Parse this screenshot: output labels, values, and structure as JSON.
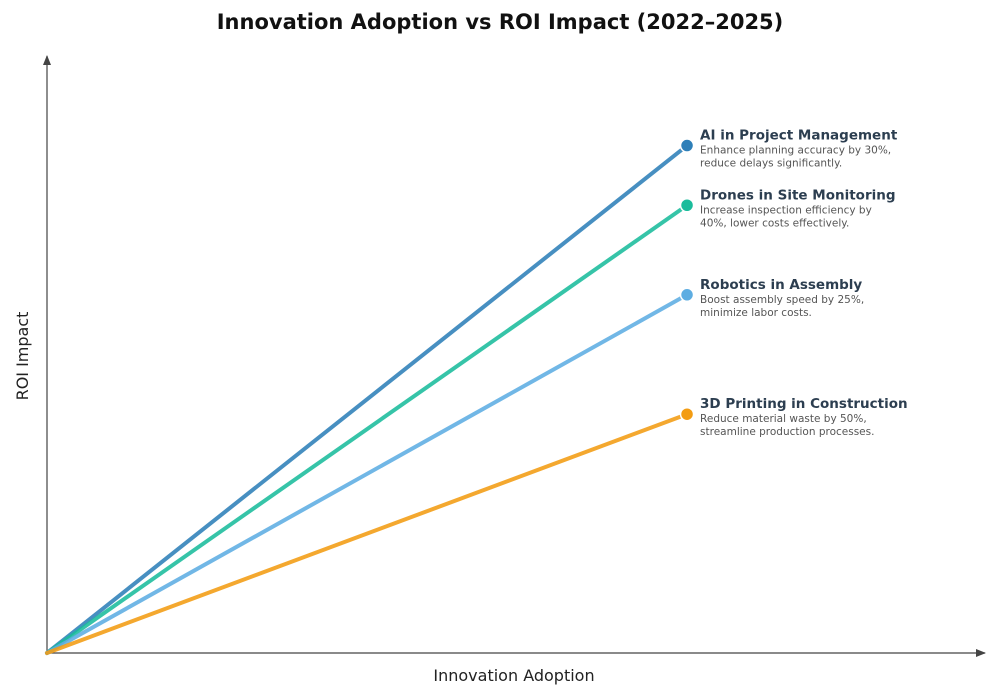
{
  "chart_data": {
    "type": "line",
    "title": "Innovation Adoption vs ROI Impact (2022–2025)",
    "xlabel": "Innovation Adoption",
    "ylabel": "ROI Impact",
    "xlim": [
      0,
      1
    ],
    "ylim": [
      0,
      1
    ],
    "grid": false,
    "legend": "inline-right",
    "series": [
      {
        "name": "AI in Project Management",
        "description_lines": [
          "Enhance planning accuracy by 30%,",
          "reduce delays significantly."
        ],
        "color": "#2e7fb8",
        "points": [
          [
            0,
            0
          ],
          [
            0.686,
            0.85
          ]
        ]
      },
      {
        "name": "Drones in Site Monitoring",
        "description_lines": [
          "Increase inspection efficiency by",
          "40%, lower costs effectively."
        ],
        "color": "#1abc9c",
        "points": [
          [
            0,
            0
          ],
          [
            0.686,
            0.75
          ]
        ]
      },
      {
        "name": "Robotics in Assembly",
        "description_lines": [
          "Boost assembly speed by 25%,",
          "minimize labor costs."
        ],
        "color": "#5dade2",
        "points": [
          [
            0,
            0
          ],
          [
            0.686,
            0.6
          ]
        ]
      },
      {
        "name": "3D Printing in Construction",
        "description_lines": [
          "Reduce material waste by 50%,",
          "streamline production processes."
        ],
        "color": "#f39c12",
        "points": [
          [
            0,
            0
          ],
          [
            0.686,
            0.4
          ]
        ]
      }
    ]
  }
}
